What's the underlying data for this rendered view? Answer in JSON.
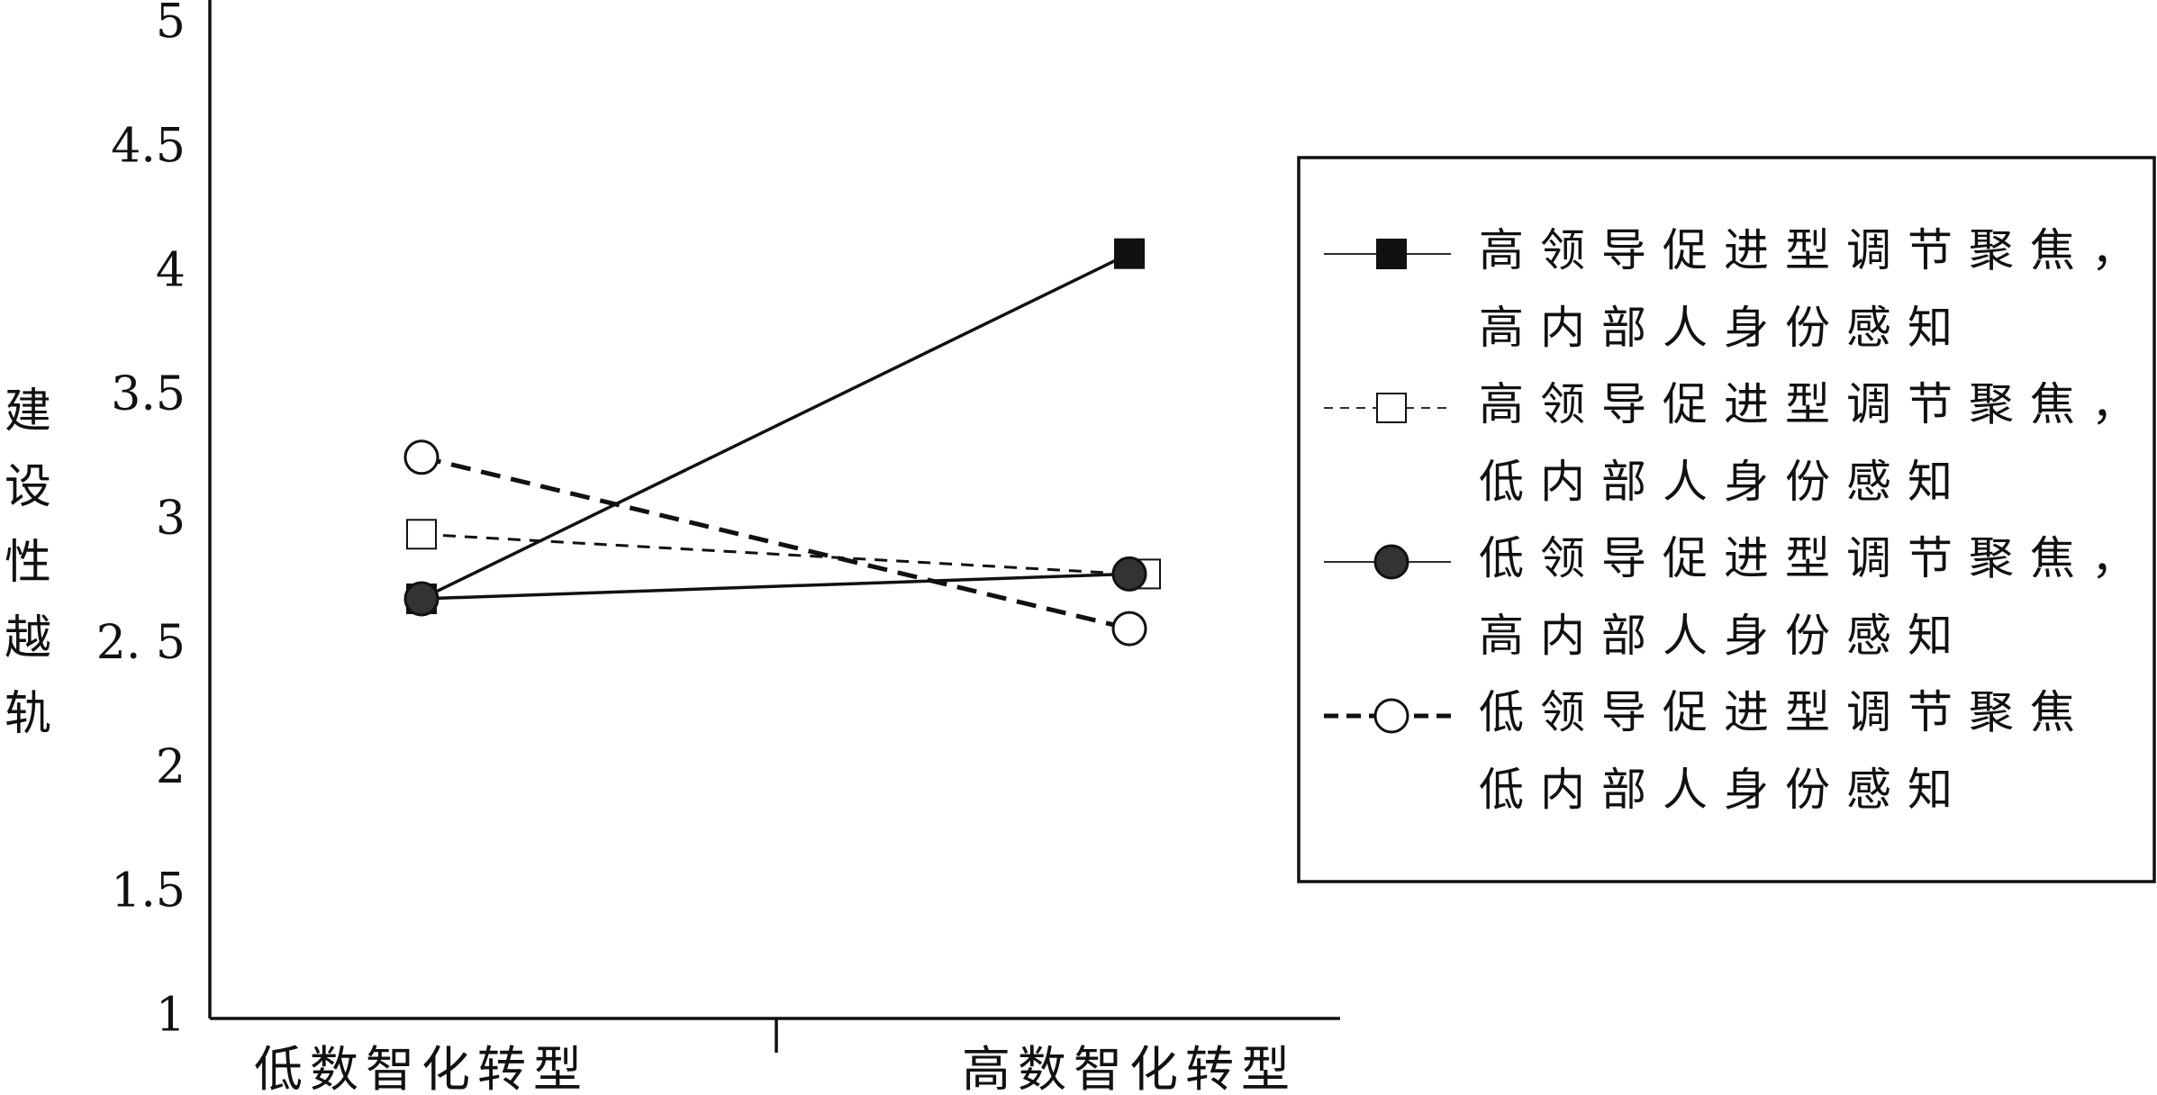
{
  "chart_data": {
    "type": "line",
    "y_label": "建设性越轨",
    "categories": [
      "低数智化转型",
      "高数智化转型"
    ],
    "ylim": [
      1,
      5
    ],
    "yticks": [
      1,
      1.5,
      2,
      {
        "value": 2.5,
        "label": "2. 5"
      },
      3,
      3.5,
      4,
      4.5,
      5
    ],
    "series": [
      {
        "name": "高领导促进型调节聚焦，\n高内部人身份感知",
        "color": "#111111",
        "marker": "square",
        "marker_fill": "#111111",
        "dash": "solid",
        "values": [
          2.69,
          4.08
        ]
      },
      {
        "name": "高领导促进型调节聚焦，\n低内部人身份感知",
        "color": "#111111",
        "marker": "square",
        "marker_fill": "#ffffff",
        "dash": "dashed",
        "values": [
          2.95,
          2.79
        ]
      },
      {
        "name": "低领导促进型调节聚焦，\n高内部人身份感知",
        "color": "#111111",
        "marker": "circle",
        "marker_fill": "#333333",
        "dash": "solid",
        "values": [
          2.69,
          2.79
        ]
      },
      {
        "name": "低领导促进型调节聚焦\n低内部人身份感知",
        "color": "#111111",
        "marker": "circle",
        "marker_fill": "#ffffff",
        "dash": "dashed-thick",
        "values": [
          3.26,
          2.57
        ]
      }
    ],
    "legend": "right"
  }
}
